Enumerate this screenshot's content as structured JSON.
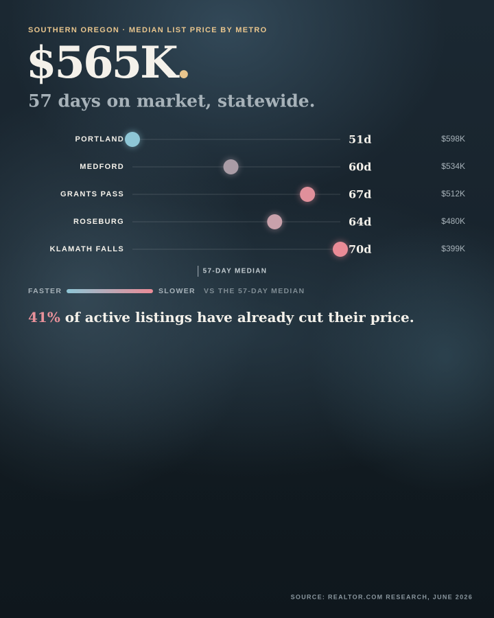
{
  "chart_data": {
    "type": "dot",
    "kicker": "SOUTHERN OREGON · MEDIAN LIST PRICE BY METRO",
    "headline": "$565K.",
    "subtitle": "57 days on market, statewide.",
    "categories": [
      "PORTLAND",
      "MEDFORD",
      "GRANTS PASS",
      "ROSEBURG",
      "KLAMATH FALLS"
    ],
    "values": [
      51,
      60,
      67,
      64,
      70
    ],
    "value_labels": [
      "51d",
      "60d",
      "67d",
      "64d",
      "70d"
    ],
    "colors": [
      "#8ec6d6",
      "#aa9ca6",
      "#e0909b",
      "#c9a1ab",
      "#ea8b96"
    ],
    "price_labels": [
      "$598K",
      "$534K",
      "$512K",
      "$480K",
      "$399K"
    ],
    "xlim": [
      51,
      70
    ],
    "median": {
      "value": 57,
      "label": "57-DAY MEDIAN"
    },
    "legend": {
      "low": "FASTER",
      "high": "SLOWER",
      "note": "VS THE 57-DAY MEDIAN"
    },
    "stat_highlight": "41%",
    "stat_text": " of active listings have already cut their price.",
    "source": "SOURCE: REALTOR.COM RESEARCH, JUNE 2026"
  }
}
